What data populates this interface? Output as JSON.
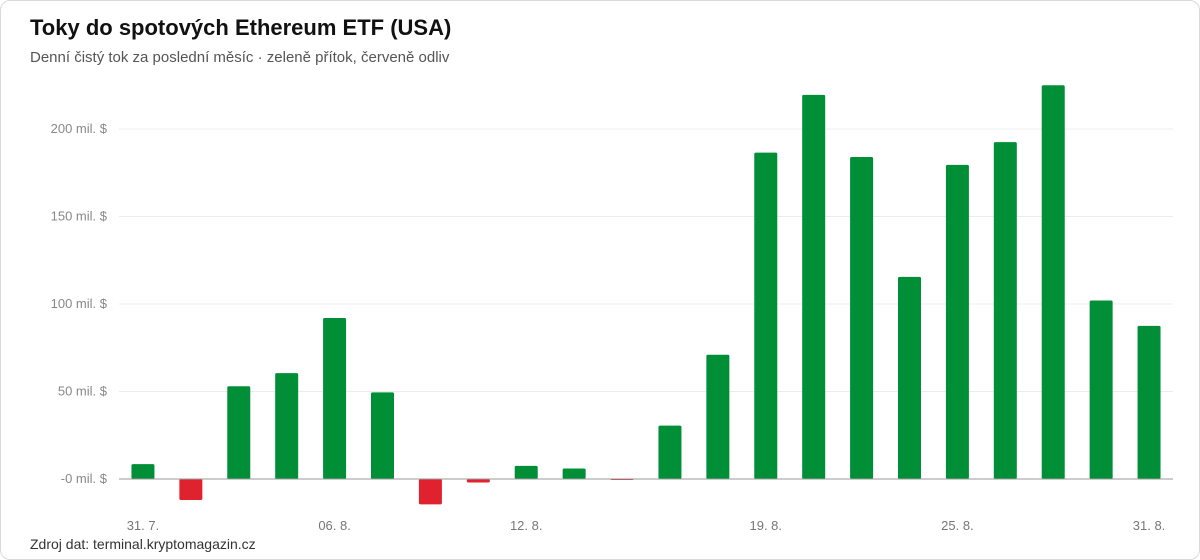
{
  "title": "Toky do spotových Ethereum ETF (USA)",
  "subtitle": "Denní čistý tok za poslední měsíc · zeleně přítok, červeně odliv",
  "source": "Zdroj dat: terminal.kryptomagazin.cz",
  "colors": {
    "inflow": "#008f36",
    "outflow": "#e0222f"
  },
  "chart_data": {
    "type": "bar",
    "title": "Toky do spotových Ethereum ETF (USA)",
    "xlabel": "",
    "ylabel": "",
    "unit": "mil. $",
    "ylim": [
      -15,
      232
    ],
    "y_ticks": [
      {
        "value": 0,
        "label": "-0 mil. $"
      },
      {
        "value": 50,
        "label": "50 mil. $"
      },
      {
        "value": 100,
        "label": "100 mil. $"
      },
      {
        "value": 150,
        "label": "150 mil. $"
      },
      {
        "value": 200,
        "label": "200 mil. $"
      }
    ],
    "x_tick_labels": [
      {
        "index": 0,
        "label": "31. 7."
      },
      {
        "index": 4,
        "label": "06. 8."
      },
      {
        "index": 8,
        "label": "12. 8."
      },
      {
        "index": 13,
        "label": "19. 8."
      },
      {
        "index": 17,
        "label": "25. 8."
      },
      {
        "index": 21,
        "label": "31. 8."
      }
    ],
    "values": [
      8.5,
      -12,
      53,
      60.5,
      92,
      49.5,
      -14.5,
      -2,
      7.5,
      6,
      -0.5,
      30.5,
      71,
      186.5,
      219.5,
      184,
      115.5,
      179.5,
      192.5,
      225,
      102,
      87.5
    ],
    "grid": true,
    "legend": "none"
  }
}
